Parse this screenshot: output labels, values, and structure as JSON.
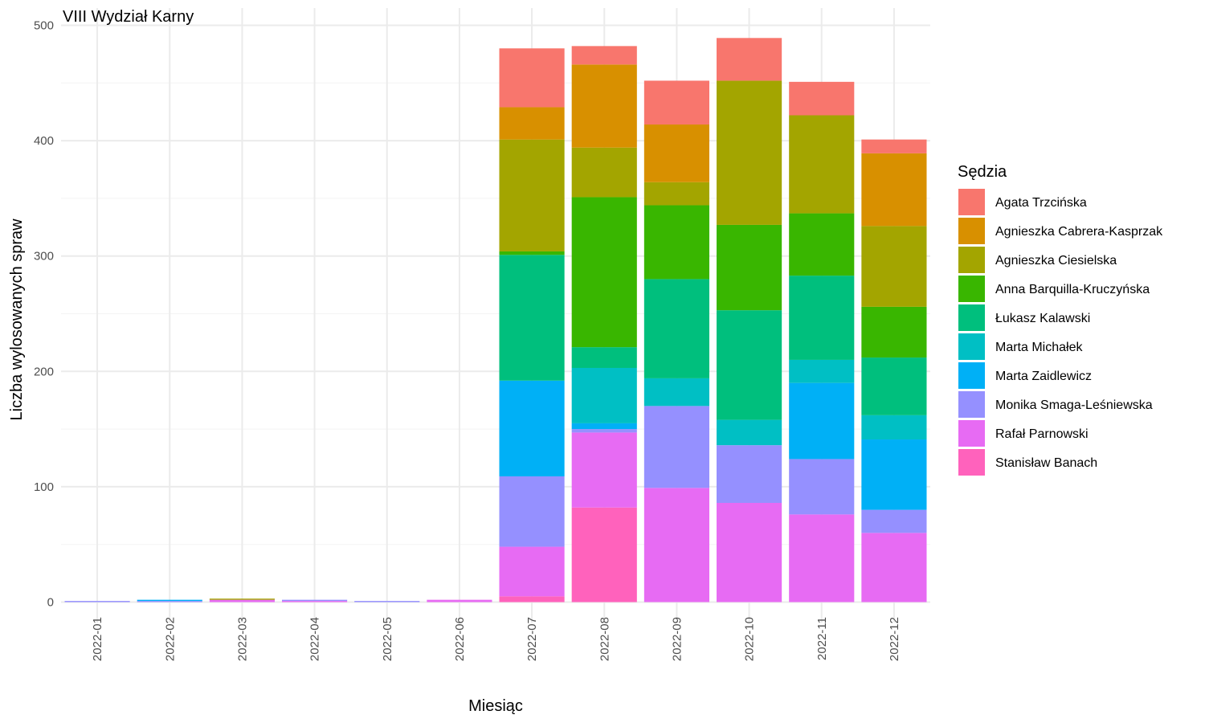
{
  "chart_data": {
    "type": "bar",
    "stacked": true,
    "title": "VIII Wydział Karny",
    "xlabel": "Miesiąc",
    "ylabel": "Liczba wylosowanych spraw",
    "ylim": [
      -15,
      500
    ],
    "yticks": [
      0,
      100,
      200,
      300,
      400,
      500
    ],
    "grid": true,
    "legend_title": "Sędzia",
    "legend_position": "right",
    "categories": [
      "2022-01",
      "2022-02",
      "2022-03",
      "2022-04",
      "2022-05",
      "2022-06",
      "2022-07",
      "2022-08",
      "2022-09",
      "2022-10",
      "2022-11",
      "2022-12"
    ],
    "series": [
      {
        "name": "Agata Trzcińska",
        "color": "#F8766D",
        "values": [
          0,
          0,
          0,
          0,
          0,
          0,
          51,
          16,
          38,
          37,
          29,
          12
        ]
      },
      {
        "name": "Agnieszka Cabrera-Kasprzak",
        "color": "#D89000",
        "values": [
          0,
          0,
          0,
          0,
          0,
          0,
          28,
          72,
          50,
          0,
          0,
          63
        ]
      },
      {
        "name": "Agnieszka Ciesielska",
        "color": "#A3A500",
        "values": [
          0,
          0,
          1,
          0,
          0,
          0,
          97,
          43,
          20,
          125,
          85,
          70
        ]
      },
      {
        "name": "Anna Barquilla-Kruczyńska",
        "color": "#39B600",
        "values": [
          0,
          0,
          0,
          0,
          0,
          0,
          3,
          130,
          64,
          74,
          54,
          44
        ]
      },
      {
        "name": "Łukasz Kalawski",
        "color": "#00BF7D",
        "values": [
          0,
          0,
          0,
          0,
          0,
          0,
          109,
          18,
          86,
          95,
          73,
          50
        ]
      },
      {
        "name": "Marta Michałek",
        "color": "#00BFC4",
        "values": [
          0,
          0,
          0,
          0,
          0,
          0,
          0,
          48,
          24,
          22,
          20,
          21
        ]
      },
      {
        "name": "Marta Zaidlewicz",
        "color": "#00B0F6",
        "values": [
          0,
          1,
          0,
          0,
          0,
          0,
          83,
          5,
          0,
          0,
          66,
          61
        ]
      },
      {
        "name": "Monika Smaga-Leśniewska",
        "color": "#9590FF",
        "values": [
          1,
          1,
          0,
          1,
          1,
          0,
          61,
          3,
          71,
          50,
          48,
          20
        ]
      },
      {
        "name": "Rafał Parnowski",
        "color": "#E76BF3",
        "values": [
          0,
          0,
          2,
          1,
          0,
          2,
          43,
          65,
          99,
          86,
          76,
          60
        ]
      },
      {
        "name": "Stanisław Banach",
        "color": "#FF62BC",
        "values": [
          0,
          0,
          0,
          0,
          0,
          0,
          5,
          82,
          0,
          0,
          0,
          0
        ]
      }
    ]
  }
}
